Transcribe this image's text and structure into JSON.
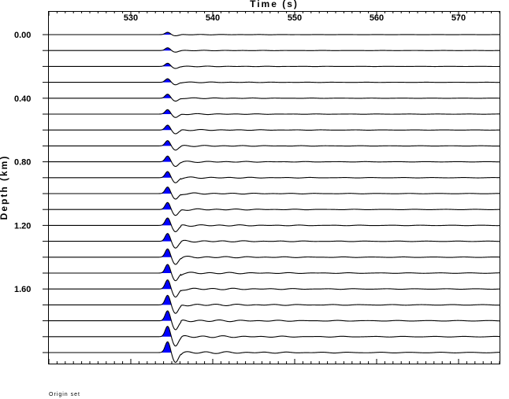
{
  "chart_data": {
    "type": "line",
    "title": "",
    "xlabel": "Time (s)",
    "ylabel": "Depth (km)",
    "xlim": [
      520,
      575
    ],
    "x_ticks": [
      530,
      540,
      550,
      560,
      570
    ],
    "ylim": [
      -0.1,
      2.1
    ],
    "y_tick_labels": [
      "0.00",
      "0.40",
      "0.80",
      "1.20",
      "1.60"
    ],
    "y_tick_values": [
      0.0,
      0.4,
      0.8,
      1.2,
      1.6
    ],
    "trace_depths_km": [
      0.0,
      0.1,
      0.2,
      0.3,
      0.4,
      0.5,
      0.6,
      0.7,
      0.8,
      0.9,
      1.0,
      1.1,
      1.2,
      1.3,
      1.4,
      1.5,
      1.6,
      1.7,
      1.8,
      1.9,
      2.0
    ],
    "pulse_arrival_s": 534.5,
    "positive_fill_color": "#0000ff",
    "trace_color": "#000000"
  },
  "footnote": "Origin set"
}
